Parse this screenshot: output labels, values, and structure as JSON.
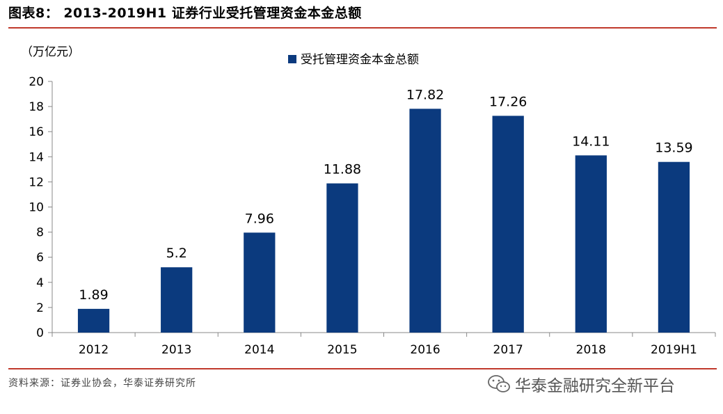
{
  "header": {
    "title": "图表8：  2013-2019H1 证券行业受托管理资金本金总额"
  },
  "footer": {
    "source": "资料来源：证券业协会，华泰证券研究所",
    "watermark": "华泰金融研究全新平台",
    "watermark_icon": "wechat-icon"
  },
  "chart_data": {
    "type": "bar",
    "categories": [
      "2012",
      "2013",
      "2014",
      "2015",
      "2016",
      "2017",
      "2018",
      "2019H1"
    ],
    "series": [
      {
        "name": "受托管理资金本金总额",
        "values": [
          1.89,
          5.2,
          7.96,
          11.88,
          17.82,
          17.26,
          14.11,
          13.59
        ]
      }
    ],
    "data_labels": [
      "1.89",
      "5.2",
      "7.96",
      "11.88",
      "17.82",
      "17.26",
      "14.11",
      "13.59"
    ],
    "unit_label": "（万亿元）",
    "ylim": [
      0,
      20
    ],
    "yticks": [
      0,
      2,
      4,
      6,
      8,
      10,
      12,
      14,
      16,
      18,
      20
    ],
    "grid": false,
    "legend_position": "top",
    "colors": {
      "bar": "#0b3a7e",
      "axis": "#888888",
      "rule": "#c0392b"
    }
  }
}
